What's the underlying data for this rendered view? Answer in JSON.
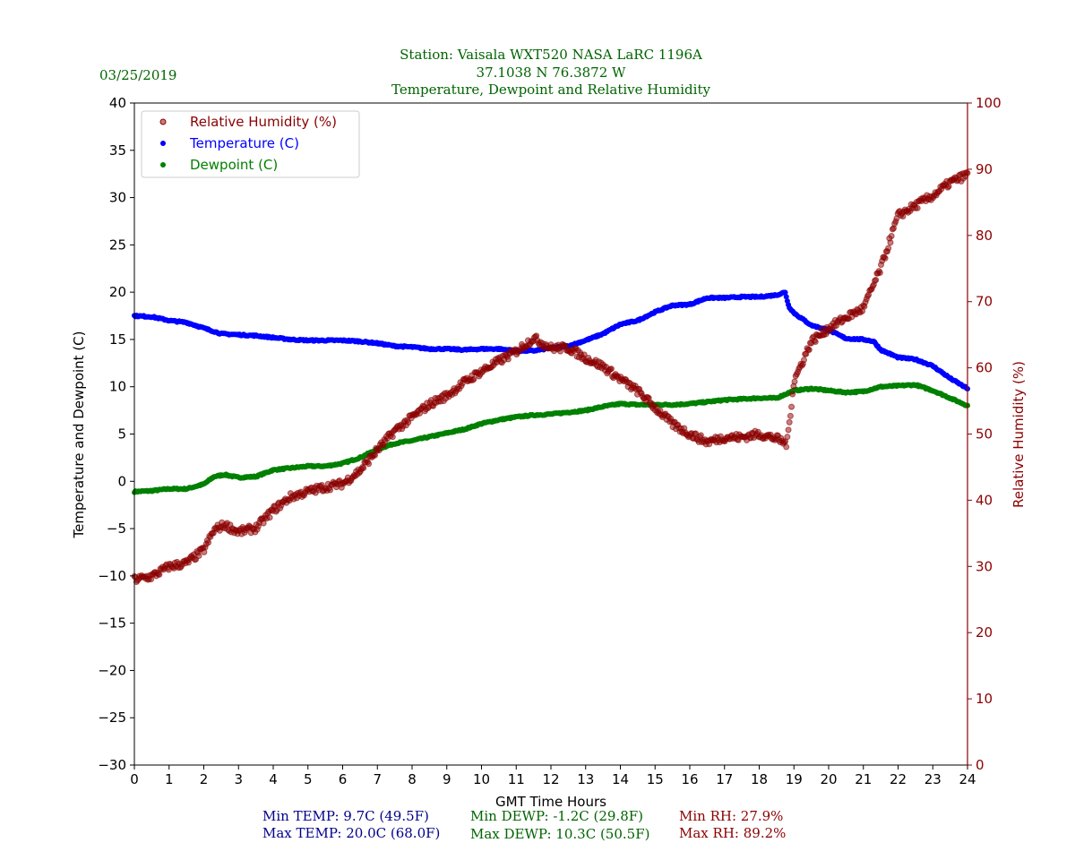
{
  "header": {
    "date": "03/25/2019",
    "title_lines": [
      "Station:  Vaisala WXT520  NASA LaRC 1196A",
      "37.1038 N 76.3872 W",
      "Temperature, Dewpoint and Relative Humidity"
    ]
  },
  "stats": {
    "min_temp": "Min TEMP: 9.7C (49.5F)",
    "max_temp": "Max TEMP: 20.0C (68.0F)",
    "min_dewp": "Min DEWP: -1.2C (29.8F)",
    "max_dewp": "Max DEWP: 10.3C (50.5F)",
    "min_rh": "Min RH: 27.9%",
    "max_rh": "Max RH: 89.2%"
  },
  "colors": {
    "title": "#006400",
    "temp": "#0000ff",
    "dewp": "#008000",
    "rh": "#8b0000",
    "stat_temp": "#00008b"
  },
  "chart_data": {
    "type": "scatter",
    "xlabel": "GMT Time Hours",
    "ylabel": "Temperature and Dewpoint (C)",
    "y2label": "Relative Humidity (%)",
    "xlim": [
      0,
      24
    ],
    "ylim": [
      -30,
      40
    ],
    "y2lim": [
      0,
      100
    ],
    "xticks": [
      "0",
      "1",
      "2",
      "3",
      "4",
      "5",
      "6",
      "7",
      "8",
      "9",
      "10",
      "11",
      "12",
      "13",
      "14",
      "15",
      "16",
      "17",
      "18",
      "19",
      "20",
      "21",
      "22",
      "23",
      "24"
    ],
    "yticks": [
      "40",
      "35",
      "30",
      "25",
      "20",
      "15",
      "10",
      "5",
      "0",
      "−5",
      "−10",
      "−15",
      "−20",
      "−25",
      "−30"
    ],
    "y2ticks": [
      "100",
      "90",
      "80",
      "70",
      "60",
      "50",
      "40",
      "30",
      "20",
      "10",
      "0"
    ],
    "legend_position": "top-left",
    "series": [
      {
        "name": "Relative Humidity (%)",
        "axis": "right",
        "color": "#8b0000",
        "x": [
          0,
          0.5,
          1,
          1.5,
          2,
          2.3,
          2.6,
          3,
          3.5,
          4,
          4.5,
          5,
          5.5,
          6,
          6.5,
          7,
          7.5,
          8,
          8.5,
          9,
          9.5,
          10,
          10.5,
          11,
          11.5,
          12,
          12.5,
          13,
          13.5,
          14,
          14.5,
          15,
          15.5,
          16,
          16.5,
          17,
          17.5,
          18,
          18.5,
          18.8,
          19,
          19.5,
          20,
          20.5,
          21,
          21.5,
          22,
          22.5,
          23,
          23.5,
          24
        ],
        "y": [
          28,
          28.5,
          30,
          30.5,
          32.5,
          35.5,
          36.3,
          35.2,
          35.8,
          38.5,
          40.5,
          41.3,
          42,
          42.5,
          44.5,
          47.6,
          50.5,
          52.5,
          54.5,
          55.8,
          57.8,
          59.5,
          61,
          62.5,
          64.5,
          63,
          63,
          61.5,
          60.2,
          58.3,
          56.5,
          54,
          51.5,
          50,
          48.8,
          49.5,
          49.5,
          50,
          49.3,
          48.5,
          58,
          64,
          66,
          67.6,
          69,
          75,
          83,
          84.5,
          86,
          88,
          89.2
        ]
      },
      {
        "name": "Temperature (C)",
        "axis": "left",
        "color": "#0000ff",
        "x": [
          0,
          0.5,
          1,
          1.5,
          2,
          2.5,
          3,
          3.5,
          4,
          4.5,
          5,
          5.5,
          6,
          6.5,
          7,
          7.5,
          8,
          8.5,
          9,
          9.5,
          10,
          10.5,
          11,
          11.5,
          12,
          12.5,
          13,
          13.5,
          14,
          14.5,
          15,
          15.5,
          16,
          16.5,
          17,
          17.5,
          18,
          18.5,
          18.75,
          18.85,
          19,
          19.5,
          20,
          20.5,
          21,
          21.3,
          21.5,
          22,
          22.5,
          23,
          23.5,
          24
        ],
        "y": [
          17.5,
          17.4,
          17,
          16.8,
          16.2,
          15.6,
          15.5,
          15.4,
          15.2,
          15,
          14.9,
          14.9,
          14.9,
          14.8,
          14.6,
          14.3,
          14.2,
          14,
          14,
          13.9,
          14,
          14,
          13.8,
          13.8,
          14.1,
          14.3,
          14.9,
          15.6,
          16.6,
          17,
          17.9,
          18.6,
          18.7,
          19.4,
          19.4,
          19.5,
          19.5,
          19.7,
          20,
          18.5,
          17.8,
          16.5,
          16,
          15.1,
          15,
          14.8,
          13.9,
          13.1,
          12.9,
          12.2,
          10.9,
          9.8
        ]
      },
      {
        "name": "Dewpoint (C)",
        "axis": "left",
        "color": "#008000",
        "x": [
          0,
          0.5,
          1,
          1.5,
          2,
          2.3,
          2.6,
          3,
          3.5,
          4,
          4.5,
          5,
          5.5,
          6,
          6.5,
          7,
          7.5,
          8,
          8.5,
          9,
          9.5,
          10,
          10.5,
          11,
          11.5,
          12,
          12.5,
          13,
          13.5,
          14,
          14.5,
          15,
          15.5,
          16,
          16.5,
          17,
          17.5,
          18,
          18.5,
          19,
          19.5,
          20,
          20.5,
          21,
          21.5,
          22,
          22.5,
          23,
          23.5,
          24
        ],
        "y": [
          -1.1,
          -1,
          -0.8,
          -0.8,
          -0.3,
          0.5,
          0.7,
          0.4,
          0.5,
          1.2,
          1.4,
          1.6,
          1.6,
          1.9,
          2.5,
          3.4,
          4,
          4.3,
          4.7,
          5.1,
          5.5,
          6.1,
          6.5,
          6.8,
          7,
          7.1,
          7.3,
          7.5,
          7.9,
          8.2,
          8.1,
          8.1,
          8.1,
          8.2,
          8.4,
          8.6,
          8.7,
          8.8,
          8.8,
          9.6,
          9.8,
          9.6,
          9.4,
          9.5,
          10,
          10.1,
          10.2,
          9.6,
          8.8,
          8
        ]
      }
    ]
  }
}
